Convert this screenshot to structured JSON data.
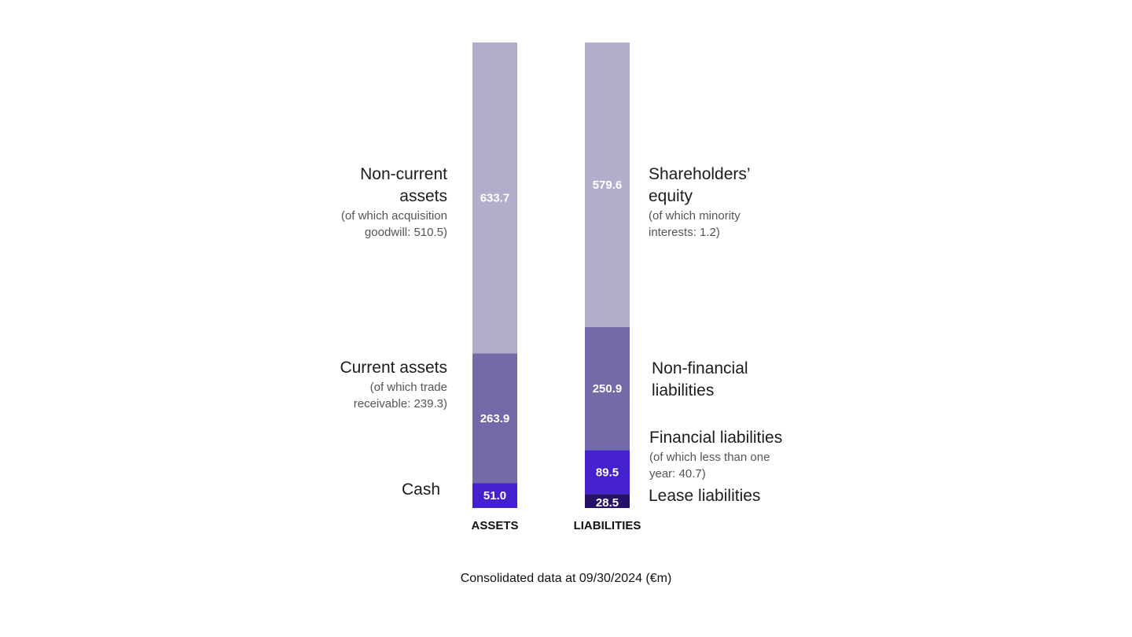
{
  "chart_data": {
    "type": "bar",
    "stacked": true,
    "unit": "€m",
    "ylim": [
      0,
      948.6
    ],
    "columns": [
      {
        "name": "ASSETS",
        "segments": [
          {
            "name": "Cash",
            "value": 51.0,
            "label": "51.0",
            "color": "#4420cf"
          },
          {
            "name": "Current assets",
            "value": 263.9,
            "label": "263.9",
            "color": "#736ba9"
          },
          {
            "name": "Non-current assets",
            "value": 633.7,
            "label": "633.7",
            "color": "#b1aecb"
          }
        ]
      },
      {
        "name": "LIABILITIES",
        "segments": [
          {
            "name": "Lease liabilities",
            "value": 28.5,
            "label": "28.5",
            "color": "#261166"
          },
          {
            "name": "Financial liabilities",
            "value": 89.5,
            "label": "89.5",
            "color": "#4420cf"
          },
          {
            "name": "Non-financial liabilities",
            "value": 250.9,
            "label": "250.9",
            "color": "#736ba9"
          },
          {
            "name": "Shareholders’ equity",
            "value": 579.6,
            "label": "579.6",
            "color": "#b1aecb"
          }
        ]
      }
    ]
  },
  "annotations": {
    "non_current_assets": {
      "title_line1": "Non-current",
      "title_line2": "assets",
      "sub_line1": "(of which acquisition",
      "sub_line2": "goodwill: 510.5)"
    },
    "current_assets": {
      "title": "Current assets",
      "sub_line1": "(of which trade",
      "sub_line2": "receivable: 239.3)"
    },
    "cash": {
      "title": "Cash"
    },
    "shareholders_equity": {
      "title_line1": "Shareholders’",
      "title_line2": "equity",
      "sub_line1": "(of which minority",
      "sub_line2": "interests: 1.2)"
    },
    "non_financial_liabilities": {
      "title_line1": "Non-financial",
      "title_line2": "liabilities"
    },
    "financial_liabilities": {
      "title": "Financial liabilities",
      "sub_line1": "(of which less than one",
      "sub_line2": "year: 40.7)"
    },
    "lease_liabilities": {
      "title": "Lease liabilities"
    }
  },
  "footnote": "Consolidated data at 09/30/2024 (€m)"
}
